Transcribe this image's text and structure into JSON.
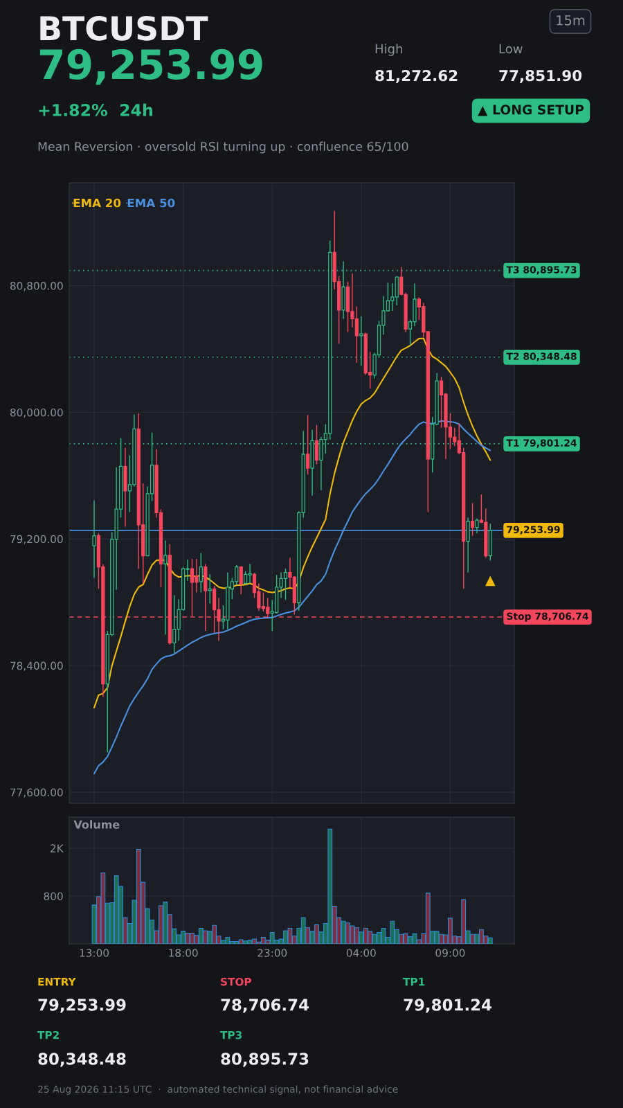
{
  "chart_data": [
    {
      "type": "other",
      "title": "BTCUSDT",
      "subtitle": "Mean Reversion · oversold RSI turning up · confluence 65/100",
      "annotations": [
        "79,253.99",
        "+1.82%  24h",
        "High",
        "81,272.62",
        "Low",
        "77,851.90",
        "15m",
        "▲ LONG SETUP"
      ]
    },
    {
      "type": "candlestick",
      "x": [
        "2026-08-24T13:00",
        "2026-08-24T13:15",
        "2026-08-24T13:30",
        "2026-08-24T13:45",
        "2026-08-24T14:00",
        "2026-08-24T14:15",
        "2026-08-24T14:30",
        "2026-08-24T14:45",
        "2026-08-24T15:00",
        "2026-08-24T15:15",
        "2026-08-24T15:30",
        "2026-08-24T15:45",
        "2026-08-24T16:00",
        "2026-08-24T16:15",
        "2026-08-24T16:30",
        "2026-08-24T16:45",
        "2026-08-24T17:00",
        "2026-08-24T17:15",
        "2026-08-24T17:30",
        "2026-08-24T17:45",
        "2026-08-24T18:00",
        "2026-08-24T18:15",
        "2026-08-24T18:30",
        "2026-08-24T18:45",
        "2026-08-24T19:00",
        "2026-08-24T19:15",
        "2026-08-24T19:30",
        "2026-08-24T19:45",
        "2026-08-24T20:00",
        "2026-08-24T20:15",
        "2026-08-24T20:30",
        "2026-08-24T20:45",
        "2026-08-24T21:00",
        "2026-08-24T21:15",
        "2026-08-24T21:30",
        "2026-08-24T21:45",
        "2026-08-24T22:00",
        "2026-08-24T22:15",
        "2026-08-24T22:30",
        "2026-08-24T22:45",
        "2026-08-24T23:00",
        "2026-08-24T23:15",
        "2026-08-24T23:30",
        "2026-08-24T23:45",
        "2026-08-25T00:00",
        "2026-08-25T00:15",
        "2026-08-25T00:30",
        "2026-08-25T00:45",
        "2026-08-25T01:00",
        "2026-08-25T01:15",
        "2026-08-25T01:30",
        "2026-08-25T01:45",
        "2026-08-25T02:00",
        "2026-08-25T02:15",
        "2026-08-25T02:30",
        "2026-08-25T02:45",
        "2026-08-25T03:00",
        "2026-08-25T03:15",
        "2026-08-25T03:30",
        "2026-08-25T03:45",
        "2026-08-25T04:00",
        "2026-08-25T04:15",
        "2026-08-25T04:30",
        "2026-08-25T04:45",
        "2026-08-25T05:00",
        "2026-08-25T05:15",
        "2026-08-25T05:30",
        "2026-08-25T05:45",
        "2026-08-25T06:00",
        "2026-08-25T06:15",
        "2026-08-25T06:30",
        "2026-08-25T06:45",
        "2026-08-25T07:00",
        "2026-08-25T07:15",
        "2026-08-25T07:30",
        "2026-08-25T07:45",
        "2026-08-25T08:00",
        "2026-08-25T08:15",
        "2026-08-25T08:30",
        "2026-08-25T08:45",
        "2026-08-25T09:00",
        "2026-08-25T09:15",
        "2026-08-25T09:30",
        "2026-08-25T09:45",
        "2026-08-25T10:00",
        "2026-08-25T10:15",
        "2026-08-25T10:30",
        "2026-08-25T10:45",
        "2026-08-25T11:00",
        "2026-08-25T11:15"
      ],
      "ohlc": [
        [
          79157,
          79444,
          78954,
          79220
        ],
        [
          79220,
          79236,
          78885,
          79023
        ],
        [
          79023,
          79042,
          78203,
          78284
        ],
        [
          78284,
          78619,
          77851.9,
          78596
        ],
        [
          78596,
          79243,
          78584,
          79197
        ],
        [
          79197,
          79652,
          78880,
          79389
        ],
        [
          79389,
          79837,
          79335,
          79659
        ],
        [
          79659,
          79775,
          79278,
          79504
        ],
        [
          79504,
          79728,
          79370,
          79543
        ],
        [
          79543,
          79987,
          79532,
          79895
        ],
        [
          79895,
          79994,
          79012,
          79289
        ],
        [
          79289,
          79550,
          78919,
          79093
        ],
        [
          79093,
          79532,
          79093,
          79486
        ],
        [
          79486,
          79872,
          79440,
          79666
        ],
        [
          79666,
          79768,
          79335,
          79366
        ],
        [
          79366,
          79389,
          78896,
          79042
        ],
        [
          79042,
          79190,
          78596,
          79097
        ],
        [
          79097,
          79167,
          78533,
          78543
        ],
        [
          78543,
          78845,
          78480,
          78630
        ],
        [
          78630,
          78820,
          78556,
          78753
        ],
        [
          78753,
          79024,
          78746,
          79012
        ],
        [
          79008,
          79070,
          78936,
          79012
        ],
        [
          79012,
          79074,
          78711,
          78926
        ],
        [
          78966,
          79074,
          78862,
          78926
        ],
        [
          78931,
          79111,
          78862,
          79023
        ],
        [
          79023,
          79042,
          78619,
          78873
        ],
        [
          78875,
          78977,
          78792,
          78885
        ],
        [
          78885,
          78903,
          78607,
          78753
        ],
        [
          78753,
          78827,
          78556,
          78681
        ],
        [
          78681,
          78781,
          78630,
          78693
        ],
        [
          78688,
          78989,
          78630,
          78896
        ],
        [
          78885,
          78954,
          78820,
          78931
        ],
        [
          78931,
          79035,
          78908,
          79023
        ],
        [
          79023,
          79028,
          78850,
          78915
        ],
        [
          78919,
          78996,
          78912,
          78977
        ],
        [
          78973,
          79042,
          78919,
          78982
        ],
        [
          78977,
          78986,
          78827,
          78862
        ],
        [
          78866,
          78919,
          78746,
          78765
        ],
        [
          78774,
          78862,
          78742,
          78760
        ],
        [
          78769,
          78827,
          78700,
          78728
        ],
        [
          78732,
          78815,
          78619,
          78742
        ],
        [
          78735,
          78973,
          78728,
          78896
        ],
        [
          78896,
          78989,
          78827,
          78950
        ],
        [
          78950,
          79012,
          78815,
          78989
        ],
        [
          78989,
          79081,
          78896,
          78959
        ],
        [
          78959,
          78966,
          78723,
          78797
        ],
        [
          78797,
          79375,
          78746,
          79366
        ],
        [
          79366,
          79883,
          79335,
          79735
        ],
        [
          79735,
          79983,
          79606,
          79647
        ],
        [
          79647,
          79890,
          79474,
          79821
        ],
        [
          79821,
          79920,
          79671,
          79698
        ],
        [
          79698,
          79844,
          79509,
          79828
        ],
        [
          79828,
          79925,
          79740,
          79867
        ],
        [
          79867,
          81085,
          79828,
          81011
        ],
        [
          81011,
          81272.62,
          80776,
          80826
        ],
        [
          80826,
          80861,
          80433,
          80646
        ],
        [
          80646,
          80953,
          80590,
          80792
        ],
        [
          80792,
          80826,
          80507,
          80637
        ],
        [
          80637,
          80877,
          80537,
          80591
        ],
        [
          80591,
          80669,
          80313,
          80484
        ],
        [
          80484,
          80607,
          80295,
          80496
        ],
        [
          80496,
          80503,
          80237,
          80249
        ],
        [
          80253,
          80383,
          80151,
          80235
        ],
        [
          80235,
          80376,
          80214,
          80364
        ],
        [
          80364,
          80577,
          80348,
          80549
        ],
        [
          80549,
          80734,
          80491,
          80641
        ],
        [
          80641,
          80819,
          80637,
          80706
        ],
        [
          80706,
          80815,
          80641,
          80729
        ],
        [
          80729,
          80861,
          80676,
          80854
        ],
        [
          80854,
          80919,
          80739,
          80745
        ],
        [
          80745,
          80757,
          80507,
          80526
        ],
        [
          80526,
          80584,
          80422,
          80572
        ],
        [
          80572,
          80815,
          80544,
          80715
        ],
        [
          80715,
          80727,
          80584,
          80665
        ],
        [
          80669,
          80692,
          80475,
          80507
        ],
        [
          80510,
          80514,
          79370,
          79705
        ],
        [
          79705,
          79971,
          79620,
          79925
        ],
        [
          79925,
          80249,
          79920,
          80198
        ],
        [
          80198,
          80225,
          79902,
          80110
        ],
        [
          80115,
          80121,
          79705,
          79907
        ],
        [
          79907,
          79994,
          79768,
          79844
        ],
        [
          79844,
          79902,
          79786,
          79814
        ],
        [
          79821,
          79930,
          79735,
          79745
        ],
        [
          79745,
          79775,
          78885,
          79185
        ],
        [
          79185,
          79335,
          78989,
          79312
        ],
        [
          79312,
          79428,
          79220,
          79273
        ],
        [
          79273,
          79329,
          79236,
          79319
        ],
        [
          79319,
          79481,
          79301,
          79305
        ],
        [
          79305,
          79393,
          79081,
          79093
        ],
        [
          79093,
          79296,
          79063,
          79253.99
        ]
      ],
      "colors": [
        "#2ebd85",
        "#f6465d",
        "#f6465d",
        "#2ebd85",
        "#2ebd85",
        "#2ebd85",
        "#2ebd85",
        "#f6465d",
        "#2ebd85",
        "#2ebd85",
        "#f6465d",
        "#f6465d",
        "#2ebd85",
        "#2ebd85",
        "#f6465d",
        "#f6465d",
        "#2ebd85",
        "#f6465d",
        "#2ebd85",
        "#2ebd85",
        "#2ebd85",
        "#2ebd85",
        "#f6465d",
        "#f6465d",
        "#2ebd85",
        "#f6465d",
        "#2ebd85",
        "#f6465d",
        "#f6465d",
        "#2ebd85",
        "#2ebd85",
        "#2ebd85",
        "#2ebd85",
        "#f6465d",
        "#2ebd85",
        "#2ebd85",
        "#f6465d",
        "#f6465d",
        "#f6465d",
        "#f6465d",
        "#2ebd85",
        "#2ebd85",
        "#2ebd85",
        "#2ebd85",
        "#f6465d",
        "#f6465d",
        "#2ebd85",
        "#2ebd85",
        "#f6465d",
        "#2ebd85",
        "#f6465d",
        "#2ebd85",
        "#2ebd85",
        "#2ebd85",
        "#f6465d",
        "#f6465d",
        "#2ebd85",
        "#f6465d",
        "#f6465d",
        "#f6465d",
        "#2ebd85",
        "#f6465d",
        "#f6465d",
        "#2ebd85",
        "#2ebd85",
        "#2ebd85",
        "#2ebd85",
        "#2ebd85",
        "#2ebd85",
        "#f6465d",
        "#f6465d",
        "#2ebd85",
        "#2ebd85",
        "#f6465d",
        "#f6465d",
        "#f6465d",
        "#2ebd85",
        "#2ebd85",
        "#f6465d",
        "#f6465d",
        "#f6465d",
        "#f6465d",
        "#f6465d",
        "#f6465d",
        "#2ebd85",
        "#f6465d",
        "#2ebd85",
        "#f6465d",
        "#f6465d",
        "#2ebd85"
      ],
      "series": [
        {
          "name": "EMA 20",
          "type": "line",
          "color": "#f0b90b",
          "values": [
            78134,
            78214,
            78224,
            78261,
            78399,
            78492,
            78584,
            78681,
            78774,
            78850,
            78896,
            78912,
            78977,
            79035,
            79065,
            79067,
            79065,
            79012,
            78977,
            78959,
            78963,
            78968,
            78966,
            78963,
            78970,
            78959,
            78942,
            78919,
            78896,
            78889,
            78891,
            78896,
            78908,
            78908,
            78912,
            78919,
            78908,
            78889,
            78878,
            78866,
            78862,
            78866,
            78873,
            78885,
            78891,
            78885,
            78931,
            79019,
            79088,
            79151,
            79208,
            79266,
            79324,
            79486,
            79613,
            79717,
            79809,
            79879,
            79948,
            80006,
            80052,
            80075,
            80091,
            80121,
            80168,
            80214,
            80260,
            80306,
            80353,
            80392,
            80406,
            80422,
            80445,
            80466,
            80468,
            80399,
            80353,
            80336,
            80313,
            80290,
            80253,
            80214,
            80156,
            80064,
            79983,
            79913,
            79851,
            79798,
            79751,
            79698
          ]
        },
        {
          "name": "EMA 50",
          "type": "line",
          "color": "#4a90e2",
          "values": [
            77717,
            77768,
            77791,
            77826,
            77886,
            77949,
            78018,
            78080,
            78145,
            78191,
            78233,
            78272,
            78318,
            78376,
            78411,
            78441,
            78457,
            78462,
            78473,
            78492,
            78510,
            78529,
            78547,
            78561,
            78577,
            78589,
            78596,
            78603,
            78607,
            78612,
            78623,
            78635,
            78649,
            78660,
            78672,
            78684,
            78693,
            78697,
            78700,
            78702,
            78704,
            78714,
            78723,
            78732,
            78739,
            78746,
            78769,
            78804,
            78838,
            78873,
            78912,
            78935,
            78977,
            79058,
            79128,
            79190,
            79255,
            79312,
            79370,
            79412,
            79451,
            79486,
            79513,
            79543,
            79583,
            79629,
            79671,
            79717,
            79763,
            79802,
            79832,
            79860,
            79895,
            79925,
            79939,
            79929,
            79929,
            79936,
            79946,
            79943,
            79941,
            79936,
            79925,
            79895,
            79867,
            79842,
            79816,
            79791,
            79775,
            79759
          ]
        },
        {
          "type": "scatter",
          "marker": "triangle",
          "color": "#f0b90b",
          "x": [
            "2026-08-25T11:15"
          ],
          "values": [
            78935
          ]
        }
      ],
      "xlim": [
        "2026-08-24T11:36",
        "2026-08-25T12:36"
      ],
      "ylim": [
        77530,
        81450
      ],
      "xticks": [
        {
          "value": "2026-08-24T13:00",
          "label": null
        },
        {
          "value": "2026-08-24T18:00",
          "label": null
        },
        {
          "value": "2026-08-24T23:00",
          "label": null
        },
        {
          "value": "2026-08-25T04:00",
          "label": null
        },
        {
          "value": "2026-08-25T09:00",
          "label": null
        }
      ],
      "yticks": [
        {
          "value": 77600,
          "label": "77,600.00"
        },
        {
          "value": 78400,
          "label": "78,400.00"
        },
        {
          "value": 79200,
          "label": "79,200.00"
        },
        {
          "value": 80000,
          "label": "80,000.00"
        },
        {
          "value": 80800,
          "label": "80,800.00"
        }
      ],
      "tick_labels": "y",
      "grid": true,
      "legend": "top left",
      "ref_lines": [
        {
          "axis": "y",
          "value": 80895.73,
          "label": "T3 80,895.73",
          "color": "#2ebd85",
          "line_style": "dotted"
        },
        {
          "axis": "y",
          "value": 80348.48,
          "label": "T2 80,348.48",
          "color": "#2ebd85",
          "line_style": "dotted"
        },
        {
          "axis": "y",
          "value": 79801.24,
          "label": "T1 79,801.24",
          "color": "#2ebd85",
          "line_style": "dotted"
        },
        {
          "axis": "y",
          "value": 79253.99,
          "label": "79,253.99",
          "color": "#4a90e2",
          "line_style": "solid"
        },
        {
          "axis": "y",
          "value": 78706.74,
          "label": "Stop 78,706.74",
          "color": "#f6465d",
          "line_style": "dashed"
        }
      ]
    },
    {
      "type": "bar",
      "title": "Volume",
      "x": [
        "2026-08-24T13:00",
        "2026-08-24T13:15",
        "2026-08-24T13:30",
        "2026-08-24T13:45",
        "2026-08-24T14:00",
        "2026-08-24T14:15",
        "2026-08-24T14:30",
        "2026-08-24T14:45",
        "2026-08-24T15:00",
        "2026-08-24T15:15",
        "2026-08-24T15:30",
        "2026-08-24T15:45",
        "2026-08-24T16:00",
        "2026-08-24T16:15",
        "2026-08-24T16:30",
        "2026-08-24T16:45",
        "2026-08-24T17:00",
        "2026-08-24T17:15",
        "2026-08-24T17:30",
        "2026-08-24T17:45",
        "2026-08-24T18:00",
        "2026-08-24T18:15",
        "2026-08-24T18:30",
        "2026-08-24T18:45",
        "2026-08-24T19:00",
        "2026-08-24T19:15",
        "2026-08-24T19:30",
        "2026-08-24T19:45",
        "2026-08-24T20:00",
        "2026-08-24T20:15",
        "2026-08-24T20:30",
        "2026-08-24T20:45",
        "2026-08-24T21:00",
        "2026-08-24T21:15",
        "2026-08-24T21:30",
        "2026-08-24T21:45",
        "2026-08-24T22:00",
        "2026-08-24T22:15",
        "2026-08-24T22:30",
        "2026-08-24T22:45",
        "2026-08-24T23:00",
        "2026-08-24T23:15",
        "2026-08-24T23:30",
        "2026-08-24T23:45",
        "2026-08-25T00:00",
        "2026-08-25T00:15",
        "2026-08-25T00:30",
        "2026-08-25T00:45",
        "2026-08-25T01:00",
        "2026-08-25T01:15",
        "2026-08-25T01:30",
        "2026-08-25T01:45",
        "2026-08-25T02:00",
        "2026-08-25T02:15",
        "2026-08-25T02:30",
        "2026-08-25T02:45",
        "2026-08-25T03:00",
        "2026-08-25T03:15",
        "2026-08-25T03:30",
        "2026-08-25T03:45",
        "2026-08-25T04:00",
        "2026-08-25T04:15",
        "2026-08-25T04:30",
        "2026-08-25T04:45",
        "2026-08-25T05:00",
        "2026-08-25T05:15",
        "2026-08-25T05:30",
        "2026-08-25T05:45",
        "2026-08-25T06:00",
        "2026-08-25T06:15",
        "2026-08-25T06:30",
        "2026-08-25T06:45",
        "2026-08-25T07:00",
        "2026-08-25T07:15",
        "2026-08-25T07:30",
        "2026-08-25T07:45",
        "2026-08-25T08:00",
        "2026-08-25T08:15",
        "2026-08-25T08:30",
        "2026-08-25T08:45",
        "2026-08-25T09:00",
        "2026-08-25T09:15",
        "2026-08-25T09:30",
        "2026-08-25T09:45",
        "2026-08-25T10:00",
        "2026-08-25T10:15",
        "2026-08-25T10:30",
        "2026-08-25T10:45",
        "2026-08-25T11:00",
        "2026-08-25T11:15"
      ],
      "values": [
        650,
        790,
        1190,
        680,
        690,
        1140,
        960,
        440,
        340,
        730,
        1580,
        1030,
        590,
        400,
        220,
        640,
        700,
        490,
        250,
        150,
        210,
        180,
        180,
        140,
        260,
        220,
        210,
        310,
        130,
        60,
        110,
        40,
        40,
        70,
        50,
        60,
        80,
        30,
        110,
        60,
        190,
        60,
        80,
        220,
        260,
        130,
        260,
        440,
        270,
        210,
        320,
        200,
        340,
        1920,
        630,
        440,
        380,
        350,
        300,
        270,
        200,
        260,
        210,
        160,
        190,
        260,
        110,
        380,
        240,
        160,
        170,
        120,
        170,
        70,
        170,
        850,
        210,
        210,
        160,
        150,
        430,
        130,
        120,
        740,
        220,
        160,
        160,
        240,
        130,
        100
      ],
      "colors": [
        "#1e6f52",
        "#7f2c3c",
        "#7f2c3c",
        "#1e6f52",
        "#1e6f52",
        "#1e6f52",
        "#1e6f52",
        "#7f2c3c",
        "#1e6f52",
        "#1e6f52",
        "#7f2c3c",
        "#7f2c3c",
        "#1e6f52",
        "#1e6f52",
        "#7f2c3c",
        "#7f2c3c",
        "#1e6f52",
        "#7f2c3c",
        "#1e6f52",
        "#1e6f52",
        "#1e6f52",
        "#7f2c3c",
        "#7f2c3c",
        "#7f2c3c",
        "#1e6f52",
        "#7f2c3c",
        "#1e6f52",
        "#7f2c3c",
        "#7f2c3c",
        "#1e6f52",
        "#1e6f52",
        "#1e6f52",
        "#1e6f52",
        "#7f2c3c",
        "#1e6f52",
        "#1e6f52",
        "#7f2c3c",
        "#7f2c3c",
        "#7f2c3c",
        "#7f2c3c",
        "#1e6f52",
        "#1e6f52",
        "#1e6f52",
        "#1e6f52",
        "#7f2c3c",
        "#7f2c3c",
        "#1e6f52",
        "#1e6f52",
        "#7f2c3c",
        "#1e6f52",
        "#7f2c3c",
        "#1e6f52",
        "#1e6f52",
        "#1e6f52",
        "#7f2c3c",
        "#7f2c3c",
        "#1e6f52",
        "#7f2c3c",
        "#7f2c3c",
        "#7f2c3c",
        "#1e6f52",
        "#7f2c3c",
        "#7f2c3c",
        "#1e6f52",
        "#1e6f52",
        "#1e6f52",
        "#1e6f52",
        "#1e6f52",
        "#1e6f52",
        "#7f2c3c",
        "#7f2c3c",
        "#1e6f52",
        "#1e6f52",
        "#7f2c3c",
        "#7f2c3c",
        "#7f2c3c",
        "#1e6f52",
        "#1e6f52",
        "#7f2c3c",
        "#7f2c3c",
        "#7f2c3c",
        "#7f2c3c",
        "#7f2c3c",
        "#7f2c3c",
        "#1e6f52",
        "#7f2c3c",
        "#1e6f52",
        "#7f2c3c",
        "#7f2c3c",
        "#1e6f52"
      ],
      "xlim": [
        "2026-08-24T11:36",
        "2026-08-25T12:36"
      ],
      "ylim": [
        0,
        2120
      ],
      "xticks": [
        {
          "value": "2026-08-24T13:00",
          "label": "13:00"
        },
        {
          "value": "2026-08-24T18:00",
          "label": "18:00"
        },
        {
          "value": "2026-08-24T23:00",
          "label": "23:00"
        },
        {
          "value": "2026-08-25T04:00",
          "label": "04:00"
        },
        {
          "value": "2026-08-25T09:00",
          "label": "09:00"
        }
      ],
      "yticks": [
        800,
        {
          "value": 1600,
          "label": "2K"
        }
      ],
      "grid": true
    },
    {
      "type": "other",
      "annotations": [
        "ENTRY",
        "79,253.99",
        "STOP",
        "78,706.74",
        "TP1",
        "79,801.24",
        "TP2",
        "80,348.48",
        "TP3",
        "80,895.73",
        "25 Aug 2026 11:15 UTC  ·  automated technical signal, not financial advice"
      ]
    }
  ]
}
